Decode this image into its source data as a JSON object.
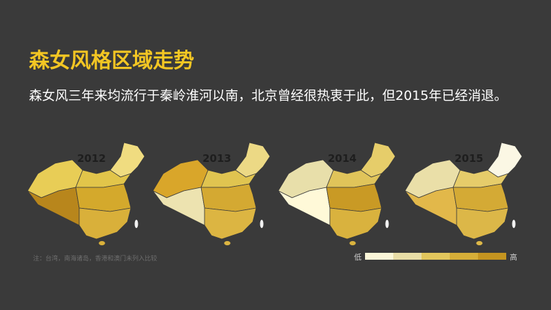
{
  "header": {
    "title": "森女风格区域走势",
    "subtitle": "森女风三年来均流行于秦岭淮河以南，北京曾经很热衷于此，但2015年已经消退。"
  },
  "maps": [
    {
      "year": "2012",
      "colors": {
        "xinjiang": "#e8cd56",
        "tibet": "#b8861c",
        "northeast": "#f0dc80",
        "north": "#e2c54a",
        "central": "#d4a92c",
        "south": "#d9b03a"
      }
    },
    {
      "year": "2013",
      "colors": {
        "xinjiang": "#d9a62a",
        "tibet": "#ede3b0",
        "northeast": "#ecd985",
        "north": "#e0c450",
        "central": "#d4a932",
        "south": "#dcb542"
      }
    },
    {
      "year": "2014",
      "colors": {
        "xinjiang": "#e8dfaa",
        "tibet": "#fff9d8",
        "northeast": "#e6cd6a",
        "north": "#e0c45a",
        "central": "#c99a25",
        "south": "#d9b23e"
      }
    },
    {
      "year": "2015",
      "colors": {
        "xinjiang": "#eadfa8",
        "tibet": "#e2b84a",
        "northeast": "#fbf7e4",
        "north": "#e6cc6a",
        "central": "#d4aa35",
        "south": "#dcb748"
      }
    }
  ],
  "note": "注：台湾，南海诸岛，香港和澳门未列入比较",
  "legend": {
    "low": "低",
    "high": "高",
    "colors": [
      "#fbf6d8",
      "#e8dda6",
      "#e2c65c",
      "#d6ae38",
      "#c49420"
    ]
  }
}
